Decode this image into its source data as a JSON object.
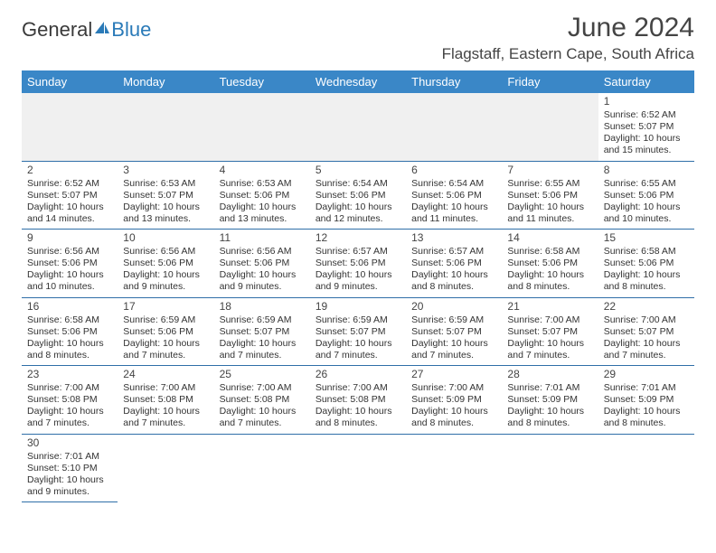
{
  "brand": {
    "part1": "General",
    "part2": "Blue"
  },
  "title": "June 2024",
  "location": "Flagstaff, Eastern Cape, South Africa",
  "colors": {
    "header_bg": "#3a87c7",
    "header_text": "#ffffff",
    "grid_top": "#bfbfbf",
    "grid_bottom": "#2f6fa8",
    "blank_bg": "#f0f0f0",
    "brand_accent": "#2a7ab8",
    "text": "#333333"
  },
  "day_headers": [
    "Sunday",
    "Monday",
    "Tuesday",
    "Wednesday",
    "Thursday",
    "Friday",
    "Saturday"
  ],
  "weeks": [
    [
      null,
      null,
      null,
      null,
      null,
      null,
      {
        "n": "1",
        "sr": "Sunrise: 6:52 AM",
        "ss": "Sunset: 5:07 PM",
        "dl1": "Daylight: 10 hours",
        "dl2": "and 15 minutes."
      }
    ],
    [
      {
        "n": "2",
        "sr": "Sunrise: 6:52 AM",
        "ss": "Sunset: 5:07 PM",
        "dl1": "Daylight: 10 hours",
        "dl2": "and 14 minutes."
      },
      {
        "n": "3",
        "sr": "Sunrise: 6:53 AM",
        "ss": "Sunset: 5:07 PM",
        "dl1": "Daylight: 10 hours",
        "dl2": "and 13 minutes."
      },
      {
        "n": "4",
        "sr": "Sunrise: 6:53 AM",
        "ss": "Sunset: 5:06 PM",
        "dl1": "Daylight: 10 hours",
        "dl2": "and 13 minutes."
      },
      {
        "n": "5",
        "sr": "Sunrise: 6:54 AM",
        "ss": "Sunset: 5:06 PM",
        "dl1": "Daylight: 10 hours",
        "dl2": "and 12 minutes."
      },
      {
        "n": "6",
        "sr": "Sunrise: 6:54 AM",
        "ss": "Sunset: 5:06 PM",
        "dl1": "Daylight: 10 hours",
        "dl2": "and 11 minutes."
      },
      {
        "n": "7",
        "sr": "Sunrise: 6:55 AM",
        "ss": "Sunset: 5:06 PM",
        "dl1": "Daylight: 10 hours",
        "dl2": "and 11 minutes."
      },
      {
        "n": "8",
        "sr": "Sunrise: 6:55 AM",
        "ss": "Sunset: 5:06 PM",
        "dl1": "Daylight: 10 hours",
        "dl2": "and 10 minutes."
      }
    ],
    [
      {
        "n": "9",
        "sr": "Sunrise: 6:56 AM",
        "ss": "Sunset: 5:06 PM",
        "dl1": "Daylight: 10 hours",
        "dl2": "and 10 minutes."
      },
      {
        "n": "10",
        "sr": "Sunrise: 6:56 AM",
        "ss": "Sunset: 5:06 PM",
        "dl1": "Daylight: 10 hours",
        "dl2": "and 9 minutes."
      },
      {
        "n": "11",
        "sr": "Sunrise: 6:56 AM",
        "ss": "Sunset: 5:06 PM",
        "dl1": "Daylight: 10 hours",
        "dl2": "and 9 minutes."
      },
      {
        "n": "12",
        "sr": "Sunrise: 6:57 AM",
        "ss": "Sunset: 5:06 PM",
        "dl1": "Daylight: 10 hours",
        "dl2": "and 9 minutes."
      },
      {
        "n": "13",
        "sr": "Sunrise: 6:57 AM",
        "ss": "Sunset: 5:06 PM",
        "dl1": "Daylight: 10 hours",
        "dl2": "and 8 minutes."
      },
      {
        "n": "14",
        "sr": "Sunrise: 6:58 AM",
        "ss": "Sunset: 5:06 PM",
        "dl1": "Daylight: 10 hours",
        "dl2": "and 8 minutes."
      },
      {
        "n": "15",
        "sr": "Sunrise: 6:58 AM",
        "ss": "Sunset: 5:06 PM",
        "dl1": "Daylight: 10 hours",
        "dl2": "and 8 minutes."
      }
    ],
    [
      {
        "n": "16",
        "sr": "Sunrise: 6:58 AM",
        "ss": "Sunset: 5:06 PM",
        "dl1": "Daylight: 10 hours",
        "dl2": "and 8 minutes."
      },
      {
        "n": "17",
        "sr": "Sunrise: 6:59 AM",
        "ss": "Sunset: 5:06 PM",
        "dl1": "Daylight: 10 hours",
        "dl2": "and 7 minutes."
      },
      {
        "n": "18",
        "sr": "Sunrise: 6:59 AM",
        "ss": "Sunset: 5:07 PM",
        "dl1": "Daylight: 10 hours",
        "dl2": "and 7 minutes."
      },
      {
        "n": "19",
        "sr": "Sunrise: 6:59 AM",
        "ss": "Sunset: 5:07 PM",
        "dl1": "Daylight: 10 hours",
        "dl2": "and 7 minutes."
      },
      {
        "n": "20",
        "sr": "Sunrise: 6:59 AM",
        "ss": "Sunset: 5:07 PM",
        "dl1": "Daylight: 10 hours",
        "dl2": "and 7 minutes."
      },
      {
        "n": "21",
        "sr": "Sunrise: 7:00 AM",
        "ss": "Sunset: 5:07 PM",
        "dl1": "Daylight: 10 hours",
        "dl2": "and 7 minutes."
      },
      {
        "n": "22",
        "sr": "Sunrise: 7:00 AM",
        "ss": "Sunset: 5:07 PM",
        "dl1": "Daylight: 10 hours",
        "dl2": "and 7 minutes."
      }
    ],
    [
      {
        "n": "23",
        "sr": "Sunrise: 7:00 AM",
        "ss": "Sunset: 5:08 PM",
        "dl1": "Daylight: 10 hours",
        "dl2": "and 7 minutes."
      },
      {
        "n": "24",
        "sr": "Sunrise: 7:00 AM",
        "ss": "Sunset: 5:08 PM",
        "dl1": "Daylight: 10 hours",
        "dl2": "and 7 minutes."
      },
      {
        "n": "25",
        "sr": "Sunrise: 7:00 AM",
        "ss": "Sunset: 5:08 PM",
        "dl1": "Daylight: 10 hours",
        "dl2": "and 7 minutes."
      },
      {
        "n": "26",
        "sr": "Sunrise: 7:00 AM",
        "ss": "Sunset: 5:08 PM",
        "dl1": "Daylight: 10 hours",
        "dl2": "and 8 minutes."
      },
      {
        "n": "27",
        "sr": "Sunrise: 7:00 AM",
        "ss": "Sunset: 5:09 PM",
        "dl1": "Daylight: 10 hours",
        "dl2": "and 8 minutes."
      },
      {
        "n": "28",
        "sr": "Sunrise: 7:01 AM",
        "ss": "Sunset: 5:09 PM",
        "dl1": "Daylight: 10 hours",
        "dl2": "and 8 minutes."
      },
      {
        "n": "29",
        "sr": "Sunrise: 7:01 AM",
        "ss": "Sunset: 5:09 PM",
        "dl1": "Daylight: 10 hours",
        "dl2": "and 8 minutes."
      }
    ],
    [
      {
        "n": "30",
        "sr": "Sunrise: 7:01 AM",
        "ss": "Sunset: 5:10 PM",
        "dl1": "Daylight: 10 hours",
        "dl2": "and 9 minutes."
      },
      null,
      null,
      null,
      null,
      null,
      null
    ]
  ]
}
